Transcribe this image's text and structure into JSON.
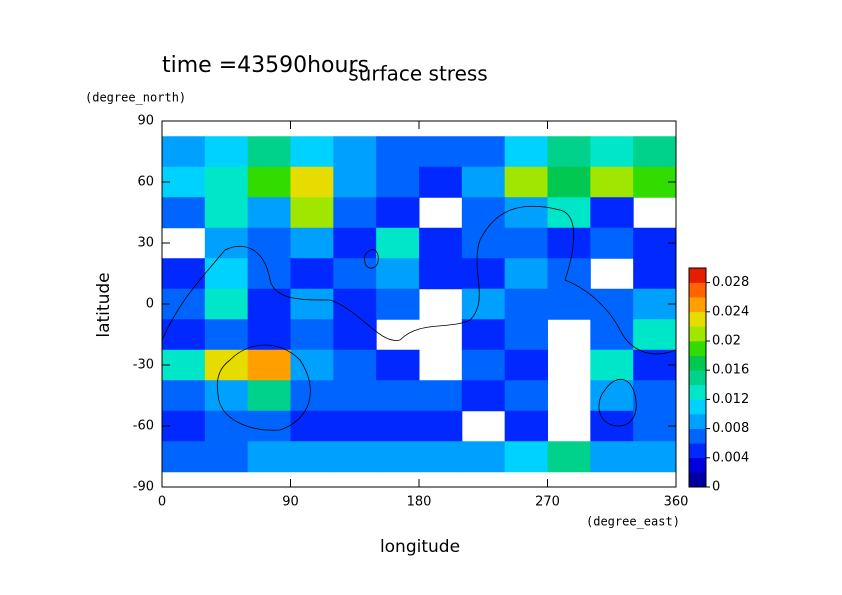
{
  "chart_data": {
    "type": "heatmap",
    "title": "surface stress",
    "subtitle": "time =43590hours",
    "x_label": "longitude",
    "y_label": "latitude",
    "x_unit": "(degree_east)",
    "y_unit": "(degree_north)",
    "x": [
      15,
      45,
      75,
      105,
      135,
      165,
      195,
      225,
      255,
      285,
      315,
      345
    ],
    "y": [
      75,
      60,
      45,
      30,
      15,
      0,
      -15,
      -30,
      -45,
      -60,
      -75
    ],
    "z": [
      [
        0.008,
        0.01,
        0.014,
        0.01,
        0.008,
        0.006,
        0.006,
        0.006,
        0.01,
        0.014,
        0.012,
        0.014
      ],
      [
        0.01,
        0.012,
        0.018,
        0.022,
        0.008,
        0.006,
        0.004,
        0.008,
        0.02,
        0.016,
        0.02,
        0.018
      ],
      [
        0.006,
        0.012,
        0.008,
        0.02,
        0.006,
        0.004,
        null,
        0.006,
        0.008,
        0.012,
        0.004,
        null
      ],
      [
        null,
        0.008,
        0.006,
        0.008,
        0.004,
        0.012,
        0.004,
        0.006,
        0.006,
        0.004,
        0.006,
        0.004
      ],
      [
        0.004,
        0.01,
        0.006,
        0.004,
        0.006,
        0.008,
        0.004,
        0.004,
        0.008,
        0.006,
        null,
        0.004
      ],
      [
        0.006,
        0.012,
        0.004,
        0.008,
        0.004,
        0.006,
        null,
        0.008,
        0.006,
        0.006,
        0.006,
        0.008
      ],
      [
        0.004,
        0.006,
        0.004,
        0.006,
        0.004,
        null,
        null,
        0.004,
        0.006,
        null,
        0.006,
        0.012
      ],
      [
        0.012,
        0.022,
        0.024,
        0.008,
        0.006,
        0.004,
        null,
        0.006,
        0.004,
        null,
        0.012,
        0.004
      ],
      [
        0.006,
        0.008,
        0.014,
        0.006,
        0.006,
        0.006,
        0.006,
        0.004,
        0.006,
        null,
        0.008,
        0.006
      ],
      [
        0.004,
        0.006,
        0.006,
        0.004,
        0.004,
        0.004,
        0.004,
        null,
        0.004,
        null,
        0.004,
        0.006
      ],
      [
        0.006,
        0.006,
        0.008,
        0.008,
        0.008,
        0.008,
        0.008,
        0.008,
        0.01,
        0.014,
        0.008,
        0.008
      ]
    ],
    "levels": [
      0,
      0.002,
      0.004,
      0.006,
      0.008,
      0.01,
      0.012,
      0.014,
      0.016,
      0.018,
      0.02,
      0.022,
      0.024,
      0.026,
      0.028,
      0.03
    ],
    "colors": [
      "#0000a0",
      "#0000dc",
      "#0028ff",
      "#0064ff",
      "#00a0ff",
      "#00d2ff",
      "#00e6c8",
      "#00d28c",
      "#00c850",
      "#32dc00",
      "#a0e600",
      "#e6dc00",
      "#ffa000",
      "#ff6400",
      "#e61e00"
    ],
    "xlim": [
      0,
      360
    ],
    "ylim": [
      -90,
      90
    ],
    "xticks": [
      0,
      90,
      180,
      270,
      360
    ],
    "yticks": [
      -90,
      -60,
      -30,
      0,
      30,
      60,
      90
    ],
    "cticks": [
      0,
      0.004,
      0.008,
      0.012,
      0.016,
      0.02,
      0.024,
      0.028
    ]
  }
}
